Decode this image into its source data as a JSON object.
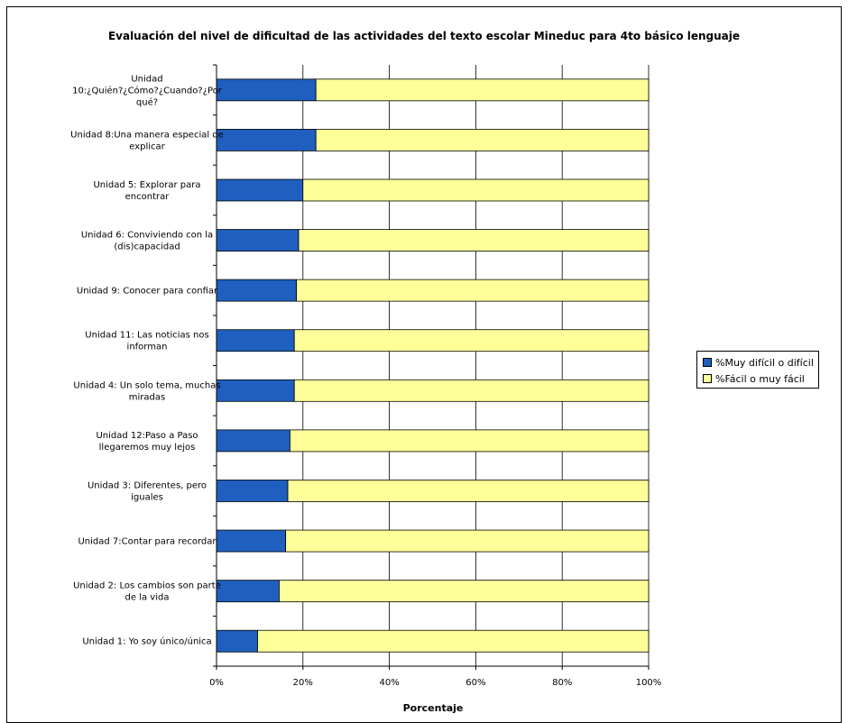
{
  "chart_data": {
    "type": "bar",
    "orientation": "horizontal",
    "stacked": true,
    "title": "Evaluación del nivel de dificultad de las actividades del texto escolar Mineduc para 4to básico lenguaje",
    "xlabel": "Porcentaje",
    "ylabel": "",
    "xlim": [
      0,
      100
    ],
    "x_ticks": [
      "0%",
      "20%",
      "40%",
      "60%",
      "80%",
      "100%"
    ],
    "grid": true,
    "legend_position": "right",
    "categories": [
      "Unidad 10:¿Quién?¿Cómo?¿Cuando?¿Por qué?",
      "Unidad 8:Una manera especial de explicar",
      "Unidad 5: Explorar para encontrar",
      "Unidad 6: Conviviendo con la (dis)capacidad",
      "Unidad 9: Conocer para confiar",
      "Unidad 11: Las noticias nos informan",
      "Unidad 4: Un solo tema, muchas miradas",
      "Unidad 12:Paso a Paso llegaremos muy lejos",
      "Unidad 3: Diferentes, pero iguales",
      "Unidad 7:Contar para recordar",
      "Unidad 2: Los cambios son parte de la vida",
      "Unidad 1: Yo soy único/única"
    ],
    "category_lines": [
      [
        "Unidad",
        "10:¿Quién?¿Cómo?¿Cuando?¿Por",
        "qué?"
      ],
      [
        "Unidad 8:Una manera especial de",
        "explicar"
      ],
      [
        "Unidad 5: Explorar para",
        "encontrar"
      ],
      [
        "Unidad 6: Conviviendo con la",
        "(dis)capacidad"
      ],
      [
        "Unidad 9: Conocer para confiar"
      ],
      [
        "Unidad 11: Las noticias nos",
        "informan"
      ],
      [
        "Unidad 4: Un solo tema, muchas",
        "miradas"
      ],
      [
        "Unidad 12:Paso a Paso",
        "llegaremos muy lejos"
      ],
      [
        "Unidad 3: Diferentes, pero",
        "iguales"
      ],
      [
        "Unidad 7:Contar para recordar"
      ],
      [
        "Unidad 2: Los cambios son parte",
        "de la vida"
      ],
      [
        "Unidad 1: Yo soy único/única"
      ]
    ],
    "series": [
      {
        "name": "%Muy difícil o difícil",
        "color": "#1f5fbf",
        "values": [
          23,
          23,
          20,
          19,
          18.5,
          18,
          18,
          17,
          16.5,
          16,
          14.5,
          9.5
        ]
      },
      {
        "name": "%Fácil o muy fácil",
        "color": "#ffff99",
        "values": [
          77,
          77,
          80,
          81,
          81.5,
          82,
          82,
          83,
          83.5,
          84,
          85.5,
          90.5
        ]
      }
    ]
  }
}
